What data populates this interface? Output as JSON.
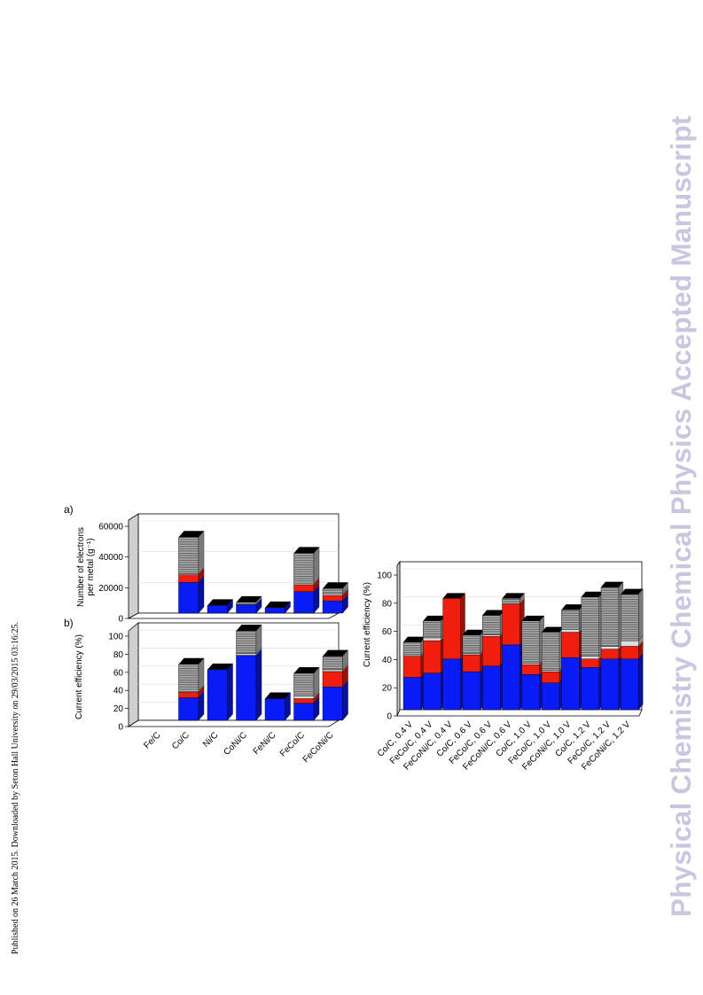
{
  "header": {
    "published_note": "Published on 26 March 2015. Downloaded by Seton Hall University on 29/03/2015 03:16:25.",
    "watermark": "Physical Chemistry Chemical Physics Accepted Manuscript"
  },
  "colors": {
    "blue": "#0a1cf5",
    "red": "#f01e0c",
    "light_gray": "#dcdcdc",
    "hatched_gray": "#9a9a9a",
    "black": "#000000"
  },
  "chart_data": [
    {
      "type": "bar",
      "stacked": true,
      "panel_label": "a)",
      "ylabel": "Number of electrons per metal (g⁻¹)",
      "ylim": [
        0,
        60000
      ],
      "yticks": [
        "0",
        "20000",
        "40000",
        "60000"
      ],
      "categories": [
        "Fe/C",
        "Co/C",
        "Ni/C",
        "CoNi/C",
        "FeNi/C",
        "FeCo/C",
        "FeCoNi/C"
      ],
      "series": [
        {
          "color": "#0a1cf5",
          "values": [
            0,
            20000,
            5000,
            5500,
            3500,
            14000,
            8000
          ]
        },
        {
          "color": "#f01e0c",
          "values": [
            0,
            5000,
            0,
            0,
            0,
            4500,
            3500
          ]
        },
        {
          "color": "#dcdcdc",
          "values": [
            0,
            500,
            0,
            0,
            0,
            1000,
            1000
          ]
        },
        {
          "color": "#9a9a9a",
          "values": [
            0,
            24000,
            0,
            1500,
            0,
            19500,
            3500
          ]
        }
      ]
    },
    {
      "type": "bar",
      "stacked": true,
      "panel_label": "b)",
      "ylabel": "Current efficiency (%)",
      "ylim": [
        0,
        100
      ],
      "yticks": [
        "0",
        "20",
        "40",
        "60",
        "80",
        "100"
      ],
      "categories": [
        "Fe/C",
        "Co/C",
        "Ni/C",
        "CoNi/C",
        "FeNi/C",
        "FeCo/C",
        "FeCoNi/C"
      ],
      "series": [
        {
          "color": "#0a1cf5",
          "values": [
            0,
            25,
            56,
            72,
            24,
            19,
            37
          ]
        },
        {
          "color": "#f01e0c",
          "values": [
            0,
            6,
            0,
            0,
            0,
            5,
            17
          ]
        },
        {
          "color": "#dcdcdc",
          "values": [
            0,
            1,
            0,
            2,
            0,
            3,
            2
          ]
        },
        {
          "color": "#9a9a9a",
          "values": [
            0,
            30,
            0,
            25,
            0,
            25,
            15
          ]
        }
      ]
    },
    {
      "type": "bar",
      "stacked": true,
      "ylabel": "Current efficiency (%)",
      "ylim": [
        0,
        100
      ],
      "yticks": [
        "0",
        "20",
        "40",
        "60",
        "80",
        "100"
      ],
      "categories": [
        "Co/C, 0.4 V",
        "FeCo/C, 0.4 V",
        "FeCoNi/C, 0.4 V",
        "Co/C, 0.6 V",
        "FeCo/C, 0.6 V",
        "FeCoNi/C, 0.6 V",
        "Co/C, 1.0 V",
        "FeCo/C, 1.0 V",
        "FeCoNi/C, 1.0 V",
        "Co/C, 1.2 V",
        "FeCo/C, 1.2 V",
        "FeCoNi/C, 1.2 V"
      ],
      "series": [
        {
          "color": "#0a1cf5",
          "values": [
            23,
            26,
            36,
            27,
            31,
            46,
            25,
            19,
            37,
            30,
            36,
            36
          ]
        },
        {
          "color": "#f01e0c",
          "values": [
            15,
            23,
            43,
            12,
            21,
            29,
            7,
            8,
            18,
            6,
            7,
            9
          ]
        },
        {
          "color": "#dcdcdc",
          "values": [
            1,
            2,
            0,
            1,
            1,
            0,
            1,
            1,
            2,
            2,
            2,
            4
          ]
        },
        {
          "color": "#9a9a9a",
          "values": [
            9,
            12,
            0,
            13,
            14,
            4,
            30,
            27,
            14,
            42,
            42,
            33
          ]
        }
      ]
    }
  ]
}
